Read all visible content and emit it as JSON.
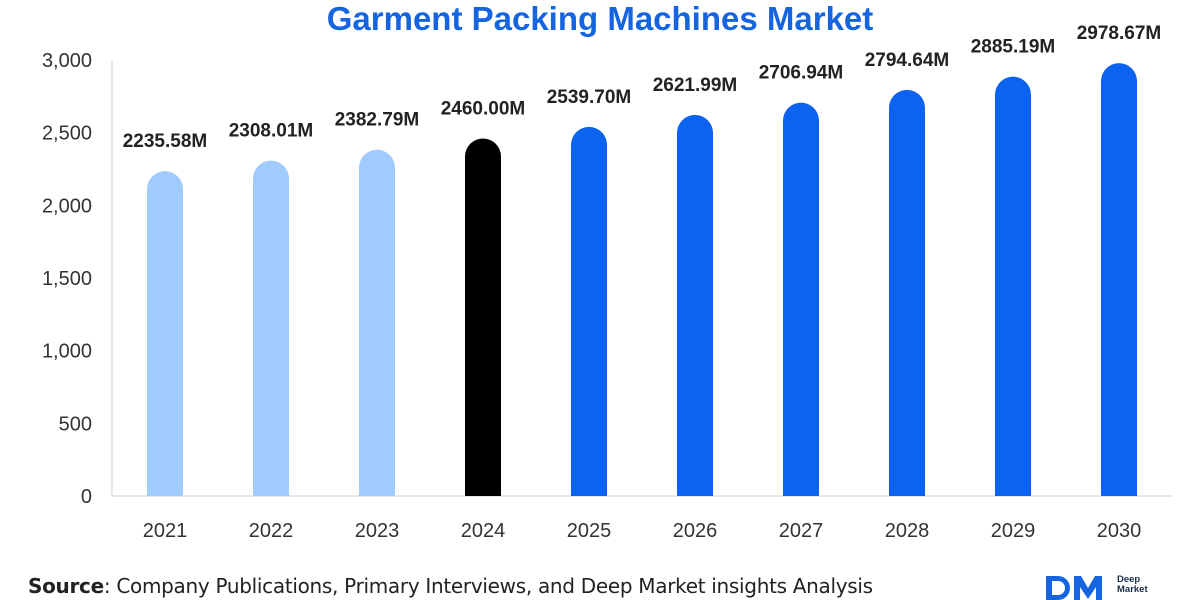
{
  "colors": {
    "title": "#1565e0",
    "historical": "#9fcbff",
    "base_year": "#000000",
    "forecast": "#0c63f0",
    "axis_text": "#333333",
    "label_text": "#222222",
    "grid": "#cfcfcf",
    "logo": "#1a2b4c"
  },
  "chart_data": {
    "type": "bar",
    "title": "Garment Packing Machines Market",
    "xlabel": "",
    "ylabel": "",
    "categories": [
      "2021",
      "2022",
      "2023",
      "2024",
      "2025",
      "2026",
      "2027",
      "2028",
      "2029",
      "2030"
    ],
    "values": [
      2235.58,
      2308.01,
      2382.79,
      2460.0,
      2539.7,
      2621.99,
      2706.94,
      2794.64,
      2885.19,
      2978.67
    ],
    "data_labels": [
      "2235.58M",
      "2308.01M",
      "2382.79M",
      "2460.00M",
      "2539.70M",
      "2621.99M",
      "2706.94M",
      "2794.64M",
      "2885.19M",
      "2978.67M"
    ],
    "bar_groups": [
      "historical",
      "historical",
      "historical",
      "base_year",
      "forecast",
      "forecast",
      "forecast",
      "forecast",
      "forecast",
      "forecast"
    ],
    "ylim": [
      0,
      3000
    ],
    "y_ticks": [
      0,
      500,
      1000,
      1500,
      2000,
      2500,
      3000
    ],
    "y_tick_labels": [
      "0",
      "500",
      "1,000",
      "1,500",
      "2,000",
      "2,500",
      "3,000"
    ],
    "grid": false,
    "legend": "none",
    "bar_style": "rounded-top"
  },
  "source": {
    "prefix": "Source",
    "text": ": Company Publications, Primary Interviews, and Deep Market insights Analysis"
  },
  "logo": {
    "mark": "DM",
    "line1": "Deep",
    "line2": "Market"
  }
}
